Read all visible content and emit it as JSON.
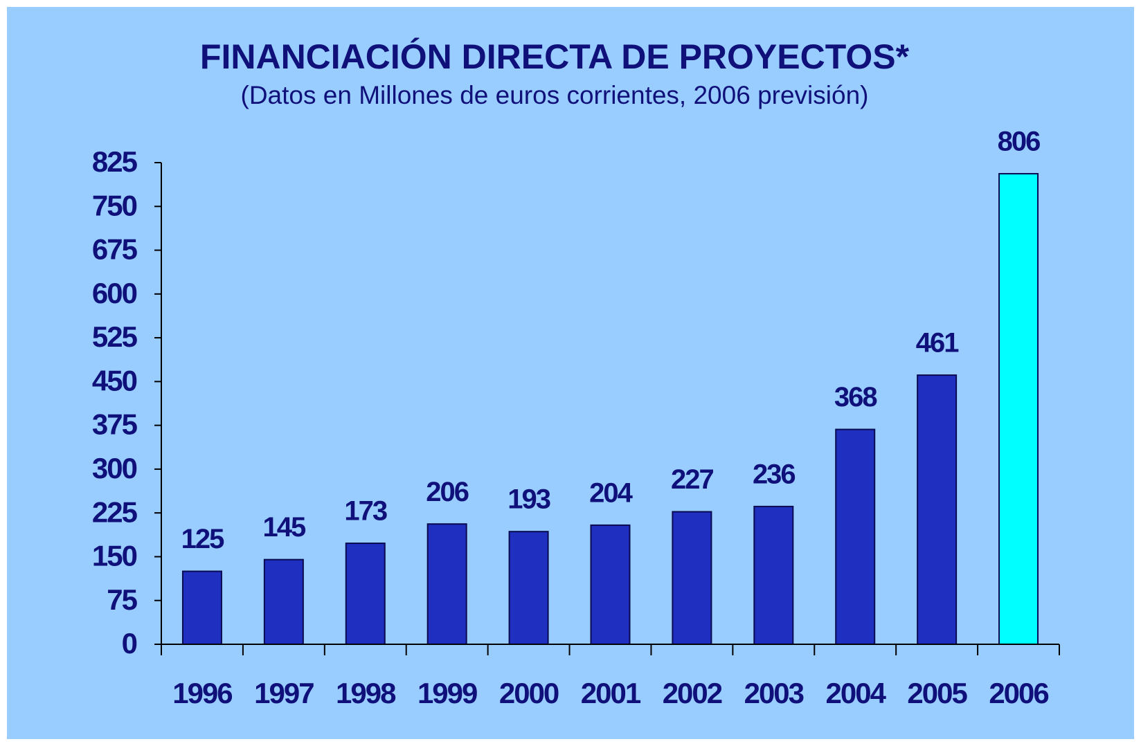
{
  "chart_data": {
    "type": "bar",
    "title": "FINANCIACIÓN DIRECTA DE PROYECTOS*",
    "subtitle": "(Datos en Millones de euros corrientes, 2006 previsión)",
    "categories": [
      "1996",
      "1997",
      "1998",
      "1999",
      "2000",
      "2001",
      "2002",
      "2003",
      "2004",
      "2005",
      "2006"
    ],
    "values": [
      125,
      145,
      173,
      206,
      193,
      204,
      227,
      236,
      368,
      461,
      806
    ],
    "colors": [
      "#1f2fbf",
      "#1f2fbf",
      "#1f2fbf",
      "#1f2fbf",
      "#1f2fbf",
      "#1f2fbf",
      "#1f2fbf",
      "#1f2fbf",
      "#1f2fbf",
      "#1f2fbf",
      "#00ffff"
    ],
    "ylim": [
      0,
      825
    ],
    "yticks": [
      0,
      75,
      150,
      225,
      300,
      375,
      450,
      525,
      600,
      675,
      750,
      825
    ],
    "grid": false
  }
}
